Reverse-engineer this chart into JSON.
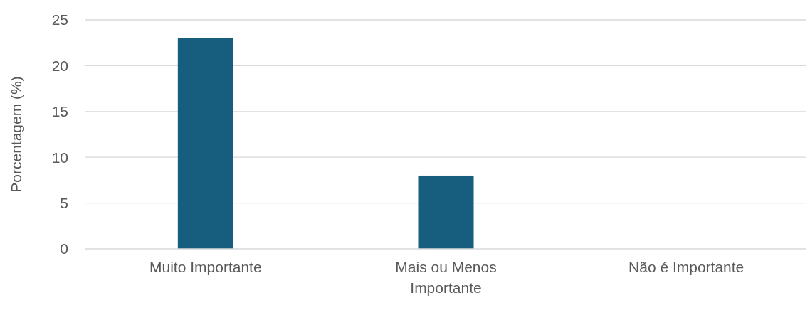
{
  "chart_data": {
    "type": "bar",
    "ylabel": "Porcentagem (%)",
    "categories": [
      "Muito Importante",
      "Mais ou Menos Importante",
      "Não é Importante"
    ],
    "values": [
      23,
      8,
      0
    ],
    "color": "#175e7e",
    "ylim": [
      0,
      25
    ],
    "yticks": [
      0,
      5,
      10,
      15,
      20,
      25
    ],
    "grid": "y"
  }
}
